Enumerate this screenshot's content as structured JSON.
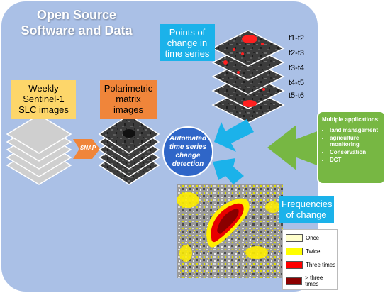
{
  "title": {
    "line1": "Open Source",
    "line2": "Software and Data"
  },
  "weekly_box": {
    "line1": "Weekly",
    "line2": "Sentinel-1",
    "line3": "SLC images"
  },
  "polarimetric_box": {
    "line1": "Polarimetric",
    "line2": "matrix",
    "line3": "images"
  },
  "snap_label": "SNAP",
  "process_circle": {
    "line1": "Automated",
    "line2": "time series",
    "line3": "change",
    "line4": "detection"
  },
  "points_box": {
    "line1": "Points of",
    "line2": "change in",
    "line3": "time series"
  },
  "time_labels": [
    "t1-t2",
    "t2-t3",
    "t3-t4",
    "t4-t5",
    "t5-t6"
  ],
  "frequencies_box": {
    "line1": "Frequencies",
    "line2": "of change"
  },
  "applications": {
    "heading": "Multiple applications:",
    "items": [
      "land management",
      "agriculture monitoring",
      "Conservation",
      "DCT"
    ]
  },
  "legend": [
    {
      "label": "Once",
      "color": "#ffffcc"
    },
    {
      "label": "Twice",
      "color": "#ffff00"
    },
    {
      "label": "Three times",
      "color": "#ff0000"
    },
    {
      "label": "> three times",
      "color": "#8b0000"
    }
  ],
  "colors": {
    "panel": "#aac0e6",
    "accent_blue": "#1bb2ea",
    "process_blue": "#2f66c8",
    "snap_orange": "#f0853a",
    "weekly_yellow": "#fdd66a",
    "applications_green": "#77b743"
  }
}
